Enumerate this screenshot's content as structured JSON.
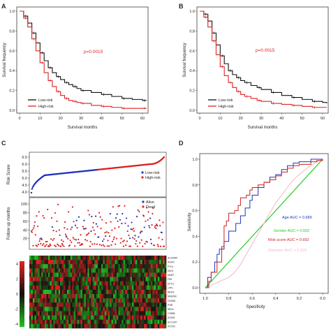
{
  "colors": {
    "low": "#111111",
    "high": "#dd2222",
    "scatter_low": "#2233bb",
    "scatter_alive": "#2233bb",
    "scatter_dead": "#dd2222",
    "heat_high": "#dd2222",
    "heat_mid": "#111111",
    "heat_low": "#22bb22",
    "roc_age": "#2233bb",
    "roc_gender": "#22cc22",
    "roc_risk": "#cc2222",
    "roc_diameter": "#f0b8c8"
  },
  "chart_data": [
    {
      "panel": "A",
      "type": "line",
      "xlabel": "Survival months",
      "ylabel": "Survival frequency",
      "xlim": [
        0,
        60
      ],
      "ylim": [
        0,
        1
      ],
      "xticks": [
        "0",
        "10",
        "20",
        "30",
        "40",
        "50",
        "60"
      ],
      "yticks": [
        "0.0",
        "0.2",
        "0.4",
        "0.6",
        "0.8",
        "1.0"
      ],
      "annotation": "p=0.0015",
      "legend_position": "bottom-left",
      "series": [
        {
          "name": "Low-risk",
          "color_key": "low",
          "x": [
            0,
            2,
            4,
            6,
            8,
            10,
            12,
            14,
            16,
            18,
            20,
            22,
            24,
            26,
            28,
            30,
            35,
            40,
            45,
            50,
            55,
            60,
            62
          ],
          "y": [
            1.0,
            0.95,
            0.88,
            0.78,
            0.68,
            0.58,
            0.5,
            0.43,
            0.38,
            0.34,
            0.31,
            0.28,
            0.26,
            0.24,
            0.22,
            0.2,
            0.18,
            0.16,
            0.14,
            0.12,
            0.11,
            0.1,
            0.1
          ]
        },
        {
          "name": "High-risk",
          "color_key": "high",
          "x": [
            0,
            2,
            4,
            6,
            8,
            10,
            12,
            14,
            16,
            18,
            20,
            22,
            24,
            26,
            28,
            30,
            35,
            40,
            45,
            50,
            55,
            60,
            62
          ],
          "y": [
            1.0,
            0.93,
            0.84,
            0.72,
            0.6,
            0.48,
            0.38,
            0.3,
            0.24,
            0.19,
            0.15,
            0.12,
            0.1,
            0.09,
            0.08,
            0.07,
            0.05,
            0.04,
            0.03,
            0.02,
            0.02,
            0.02,
            0.02
          ]
        }
      ]
    },
    {
      "panel": "B",
      "type": "line",
      "xlabel": "Survival months",
      "ylabel": "Survival frequency",
      "xlim": [
        0,
        60
      ],
      "ylim": [
        0,
        1
      ],
      "xticks": [
        "0",
        "10",
        "20",
        "30",
        "40",
        "50",
        "60"
      ],
      "yticks": [
        "0.0",
        "0.2",
        "0.4",
        "0.6",
        "0.8",
        "1.0"
      ],
      "annotation": "p=0.0015",
      "legend_position": "bottom-left",
      "series": [
        {
          "name": "Low-risk",
          "color_key": "low",
          "x": [
            0,
            2,
            4,
            6,
            8,
            10,
            12,
            14,
            16,
            18,
            20,
            22,
            25,
            28,
            30,
            35,
            40,
            45,
            50,
            55,
            60,
            62
          ],
          "y": [
            1.0,
            0.97,
            0.9,
            0.78,
            0.66,
            0.55,
            0.47,
            0.4,
            0.36,
            0.33,
            0.3,
            0.28,
            0.25,
            0.23,
            0.21,
            0.18,
            0.15,
            0.13,
            0.11,
            0.09,
            0.08,
            0.07
          ]
        },
        {
          "name": "High-risk",
          "color_key": "high",
          "x": [
            0,
            2,
            4,
            6,
            8,
            10,
            12,
            14,
            16,
            18,
            20,
            22,
            25,
            28,
            30,
            35,
            40,
            45,
            50,
            55,
            60,
            62
          ],
          "y": [
            1.0,
            0.94,
            0.84,
            0.7,
            0.56,
            0.44,
            0.35,
            0.28,
            0.23,
            0.19,
            0.16,
            0.14,
            0.12,
            0.1,
            0.09,
            0.07,
            0.06,
            0.05,
            0.04,
            0.03,
            0.03,
            0.03
          ]
        }
      ]
    },
    {
      "panel": "C",
      "type": "scatter",
      "subplots": [
        {
          "name": "risk-score",
          "ylabel": "Risk Score",
          "ylim": [
            3.8,
            6.7
          ],
          "yticks": [
            "4.0",
            "4.5",
            "5.0",
            "5.5",
            "6.0",
            "6.5"
          ],
          "n_points": 230,
          "low_fraction": 0.5,
          "curve": {
            "start": 3.95,
            "knee_low": 5.2,
            "median": 5.6,
            "knee_high": 6.0,
            "end": 6.5
          },
          "legend": [
            "Low-risk",
            "High-risk"
          ],
          "legend_position": "right"
        },
        {
          "name": "follow-up",
          "ylabel": "Follow up months",
          "ylim": [
            0,
            110
          ],
          "yticks": [
            "20",
            "40",
            "60",
            "80",
            "100"
          ],
          "legend": [
            "Alive",
            "Dead"
          ],
          "legend_position": "top-right",
          "alive_fraction": 0.18
        },
        {
          "name": "heatmap",
          "type": "heatmap",
          "scale_ticks": [
            "4",
            "2",
            "0",
            "-2",
            "-4"
          ],
          "rows": [
            "ALOX5AP",
            "AGAIC",
            "PYGL",
            "DAG1",
            "MAMT",
            "FAH",
            "EXTL1",
            "LPP1",
            "NIDD2",
            "MANX80",
            "CNSM3",
            "PI3B",
            "NEKA",
            "CYBB8",
            "AGA26",
            "SLC12A7",
            "HCOX2"
          ]
        }
      ]
    },
    {
      "panel": "D",
      "type": "line",
      "xlabel": "Specificity",
      "ylabel": "Sensitivity",
      "xlim": [
        1.0,
        0.0
      ],
      "ylim": [
        0,
        1
      ],
      "xticks": [
        "1.0",
        "0.8",
        "0.6",
        "0.4",
        "0.2",
        "0.0"
      ],
      "yticks": [
        "0.0",
        "0.2",
        "0.4",
        "0.6",
        "0.8",
        "1.0"
      ],
      "series": [
        {
          "name": "Age AUC = 0.689",
          "color_key": "roc_age",
          "specificity": [
            1.0,
            0.98,
            0.95,
            0.92,
            0.9,
            0.88,
            0.84,
            0.8,
            0.74,
            0.7,
            0.66,
            0.62,
            0.6,
            0.55,
            0.5,
            0.45,
            0.4,
            0.35,
            0.3,
            0.25,
            0.2,
            0.1,
            0.0
          ],
          "sensitivity": [
            0.0,
            0.08,
            0.12,
            0.2,
            0.26,
            0.3,
            0.36,
            0.44,
            0.5,
            0.56,
            0.62,
            0.68,
            0.72,
            0.78,
            0.82,
            0.86,
            0.88,
            0.92,
            0.95,
            0.97,
            0.98,
            1.0,
            1.0
          ]
        },
        {
          "name": "Gender AUC = 0.502",
          "color_key": "roc_gender",
          "specificity": [
            1.0,
            0.0
          ],
          "sensitivity": [
            0.0,
            1.0
          ]
        },
        {
          "name": "Risk score AUC = 0.692",
          "color_key": "roc_risk",
          "specificity": [
            1.0,
            0.97,
            0.95,
            0.9,
            0.86,
            0.84,
            0.82,
            0.8,
            0.75,
            0.72,
            0.7,
            0.65,
            0.62,
            0.6,
            0.55,
            0.5,
            0.45,
            0.4,
            0.35,
            0.3,
            0.25,
            0.2,
            0.1,
            0.05,
            0.0
          ],
          "sensitivity": [
            0.0,
            0.05,
            0.12,
            0.2,
            0.32,
            0.48,
            0.52,
            0.58,
            0.6,
            0.64,
            0.7,
            0.72,
            0.76,
            0.78,
            0.8,
            0.82,
            0.84,
            0.87,
            0.9,
            0.93,
            0.95,
            0.96,
            0.98,
            0.99,
            1.0
          ]
        },
        {
          "name": "Diameter AUC = 0.529",
          "color_key": "roc_diameter",
          "specificity": [
            1.0,
            0.95,
            0.9,
            0.85,
            0.8,
            0.75,
            0.7,
            0.65,
            0.6,
            0.55,
            0.5,
            0.45,
            0.4,
            0.35,
            0.3,
            0.25,
            0.2,
            0.15,
            0.1,
            0.05,
            0.0
          ],
          "sensitivity": [
            0.0,
            0.02,
            0.04,
            0.06,
            0.08,
            0.12,
            0.18,
            0.26,
            0.34,
            0.42,
            0.5,
            0.58,
            0.66,
            0.72,
            0.78,
            0.84,
            0.88,
            0.92,
            0.95,
            0.98,
            1.0
          ]
        }
      ]
    }
  ]
}
